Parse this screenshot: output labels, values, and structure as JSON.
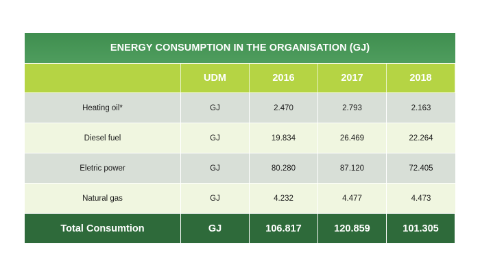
{
  "table": {
    "title": "ENERGY CONSUMPTION IN THE ORGANISATION (GJ)",
    "headers": [
      "",
      "UDM",
      "2016",
      "2017",
      "2018"
    ],
    "rows": [
      {
        "label": "Heating oil*",
        "udm": "GJ",
        "y2016": "2.470",
        "y2017": "2.793",
        "y2018": "2.163"
      },
      {
        "label": "Diesel fuel",
        "udm": "GJ",
        "y2016": "19.834",
        "y2017": "26.469",
        "y2018": "22.264"
      },
      {
        "label": "Eletric power",
        "udm": "GJ",
        "y2016": "80.280",
        "y2017": "87.120",
        "y2018": "72.405"
      },
      {
        "label": "Natural gas",
        "udm": "GJ",
        "y2016": "4.232",
        "y2017": "4.477",
        "y2018": "4.473"
      }
    ],
    "total": {
      "label": "Total Consumtion",
      "udm": "GJ",
      "y2016": "106.817",
      "y2017": "120.859",
      "y2018": "101.305"
    }
  },
  "colors": {
    "title_bg": "#4a9a5a",
    "header_bg": "#b5d444",
    "row_odd_bg": "#d8dfd7",
    "row_even_bg": "#f0f6e0",
    "total_bg": "#2e6a3a"
  }
}
